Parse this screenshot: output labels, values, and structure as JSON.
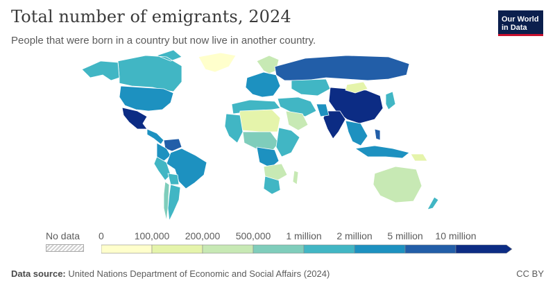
{
  "header": {
    "title": "Total number of emigrants, 2024",
    "subtitle": "People that were born in a country but now live in another country."
  },
  "logo": {
    "line1": "Our World",
    "line2": "in Data"
  },
  "legend": {
    "no_data_label": "No data",
    "bins": [
      {
        "label": "0",
        "color": "#ffffcc"
      },
      {
        "label": "100,000",
        "color": "#e5f4ab"
      },
      {
        "label": "200,000",
        "color": "#c7e9b4"
      },
      {
        "label": "500,000",
        "color": "#7fcdbb"
      },
      {
        "label": "1 million",
        "color": "#41b6c4"
      },
      {
        "label": "2 million",
        "color": "#1d91c0"
      },
      {
        "label": "5 million",
        "color": "#225ea8"
      },
      {
        "label": "10 million",
        "color": "#0c2c84"
      }
    ]
  },
  "map_regions": [
    {
      "name": "Canada",
      "color": "#41b6c4"
    },
    {
      "name": "Alaska",
      "color": "#41b6c4"
    },
    {
      "name": "Greenland",
      "color": "#ffffcc"
    },
    {
      "name": "United States",
      "color": "#1d91c0"
    },
    {
      "name": "Mexico",
      "color": "#0c2c84"
    },
    {
      "name": "Central America",
      "color": "#1d91c0"
    },
    {
      "name": "Venezuela",
      "color": "#225ea8"
    },
    {
      "name": "Colombia",
      "color": "#1d91c0"
    },
    {
      "name": "Brazil",
      "color": "#1d91c0"
    },
    {
      "name": "Peru",
      "color": "#41b6c4"
    },
    {
      "name": "Bolivia",
      "color": "#41b6c4"
    },
    {
      "name": "Argentina",
      "color": "#41b6c4"
    },
    {
      "name": "Chile",
      "color": "#7fcdbb"
    },
    {
      "name": "Western Europe",
      "color": "#1d91c0"
    },
    {
      "name": "Scandinavia",
      "color": "#c7e9b4"
    },
    {
      "name": "Russia",
      "color": "#225ea8"
    },
    {
      "name": "Kazakhstan",
      "color": "#41b6c4"
    },
    {
      "name": "China",
      "color": "#0c2c84"
    },
    {
      "name": "Mongolia",
      "color": "#e5f4ab"
    },
    {
      "name": "India",
      "color": "#0c2c84"
    },
    {
      "name": "Pakistan",
      "color": "#1d91c0"
    },
    {
      "name": "Middle East",
      "color": "#41b6c4"
    },
    {
      "name": "Saudi Arabia",
      "color": "#c7e9b4"
    },
    {
      "name": "North Africa",
      "color": "#41b6c4"
    },
    {
      "name": "Sahara",
      "color": "#e5f4ab"
    },
    {
      "name": "West Africa",
      "color": "#41b6c4"
    },
    {
      "name": "Central Africa",
      "color": "#7fcdbb"
    },
    {
      "name": "DR Congo",
      "color": "#1d91c0"
    },
    {
      "name": "East Africa",
      "color": "#41b6c4"
    },
    {
      "name": "Southern Africa",
      "color": "#c7e9b4"
    },
    {
      "name": "South Africa",
      "color": "#41b6c4"
    },
    {
      "name": "Madagascar",
      "color": "#c7e9b4"
    },
    {
      "name": "Southeast Asia",
      "color": "#1d91c0"
    },
    {
      "name": "Indonesia",
      "color": "#1d91c0"
    },
    {
      "name": "Philippines",
      "color": "#225ea8"
    },
    {
      "name": "Japan",
      "color": "#41b6c4"
    },
    {
      "name": "Australia",
      "color": "#c7e9b4"
    },
    {
      "name": "New Zealand",
      "color": "#41b6c4"
    },
    {
      "name": "Papua New Guinea",
      "color": "#e5f4ab"
    }
  ],
  "footer": {
    "source_label": "Data source:",
    "source_text": " United Nations Department of Economic and Social Affairs (2024)",
    "license": "CC BY"
  }
}
